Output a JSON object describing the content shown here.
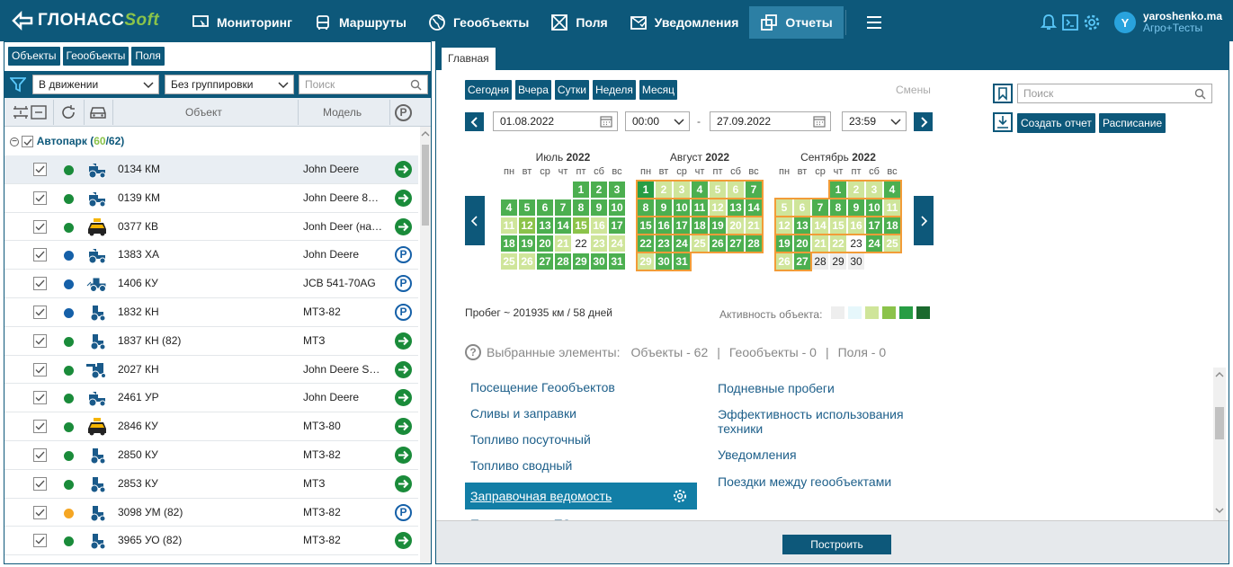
{
  "app": {
    "logo_main": "ГЛОНАСС",
    "logo_soft": "Soft"
  },
  "nav": [
    {
      "label": "Мониторинг",
      "icon": "monitor-icon"
    },
    {
      "label": "Маршруты",
      "icon": "bus-icon"
    },
    {
      "label": "Геообъекты",
      "icon": "globe-icon"
    },
    {
      "label": "Поля",
      "icon": "field-icon"
    },
    {
      "label": "Уведомления",
      "icon": "mail-check-icon"
    },
    {
      "label": "Отчеты",
      "icon": "reports-icon",
      "active": true
    }
  ],
  "user": {
    "initial": "Y",
    "name": "yaroshenko.ma",
    "org": "Агро+Тесты"
  },
  "left_tabs": [
    "Объекты",
    "Геообъекты",
    "Поля"
  ],
  "filters": {
    "movement": "В движении",
    "grouping": "Без группировки",
    "search_placeholder": "Поиск"
  },
  "table_headers": {
    "object": "Объект",
    "model": "Модель"
  },
  "group": {
    "name": "Автопарк (",
    "active": "60",
    "sep": "/",
    "total": "62",
    "close": ")"
  },
  "objects": [
    {
      "name": "0134 КМ",
      "model": "John Deere",
      "dot": "#1a8b3a",
      "vehicle": "tractor",
      "status": "go",
      "selected": true
    },
    {
      "name": "0139 КМ",
      "model": "John Deere 8…",
      "dot": "#1a8b3a",
      "vehicle": "tractor",
      "status": "go"
    },
    {
      "name": "0377 КВ",
      "model": "Jonh Deer (на…",
      "dot": "#1a8b3a",
      "vehicle": "taxi",
      "status": "go"
    },
    {
      "name": "1383 ХА",
      "model": "John Deere",
      "dot": "#1560a8",
      "vehicle": "tractor",
      "status": "park"
    },
    {
      "name": "1406 КУ",
      "model": "JCB 541-70AG",
      "dot": "#1560a8",
      "vehicle": "loader",
      "status": "park"
    },
    {
      "name": "1832 КН",
      "model": "МТЗ-82",
      "dot": "#1560a8",
      "vehicle": "small-tractor",
      "status": "park"
    },
    {
      "name": "1837 КН (82)",
      "model": "МТЗ",
      "dot": "#1a8b3a",
      "vehicle": "small-tractor",
      "status": "go"
    },
    {
      "name": "2027 КН",
      "model": "John Deere S…",
      "dot": "#1a8b3a",
      "vehicle": "combine",
      "status": "go"
    },
    {
      "name": "2461 УР",
      "model": "John Deere",
      "dot": "#1a8b3a",
      "vehicle": "tractor",
      "status": "go"
    },
    {
      "name": "2846 КУ",
      "model": "МТЗ-80",
      "dot": "#1a8b3a",
      "vehicle": "taxi",
      "status": "go"
    },
    {
      "name": "2850 КУ",
      "model": "МТЗ-82",
      "dot": "#1a8b3a",
      "vehicle": "small-tractor",
      "status": "go"
    },
    {
      "name": "2853 КУ",
      "model": "МТЗ",
      "dot": "#1a8b3a",
      "vehicle": "small-tractor",
      "status": "go"
    },
    {
      "name": "3098 УМ (82)",
      "model": "МТЗ-82",
      "dot": "#f5a623",
      "vehicle": "small-tractor",
      "status": "park"
    },
    {
      "name": "3965 УО (82)",
      "model": "МТЗ-82",
      "dot": "#1a8b3a",
      "vehicle": "small-tractor",
      "status": "go"
    }
  ],
  "right_tab": "Главная",
  "periods": [
    "Сегодня",
    "Вчера",
    "Сутки",
    "Неделя",
    "Месяц"
  ],
  "shifts_label": "Смены",
  "date_from": "01.08.2022",
  "time_from": "00:00",
  "date_sep": "-",
  "date_to": "27.09.2022",
  "time_to": "23:59",
  "weekdays": [
    "пн",
    "вт",
    "ср",
    "чт",
    "пт",
    "сб",
    "вс"
  ],
  "calendars": [
    {
      "month": "Июль",
      "year": "2022",
      "start_col": 4,
      "days": 31,
      "levels": [
        3,
        3,
        3,
        3,
        3,
        3,
        3,
        3,
        3,
        3,
        1,
        2,
        3,
        3,
        2,
        1,
        3,
        3,
        3,
        3,
        1,
        0,
        1,
        1,
        1,
        1,
        3,
        3,
        3,
        3,
        3
      ]
    },
    {
      "month": "Август",
      "year": "2022",
      "start_col": 0,
      "days": 31,
      "selected_from": 1,
      "levels": [
        4,
        1,
        1,
        3,
        1,
        1,
        3,
        3,
        3,
        3,
        3,
        1,
        3,
        3,
        3,
        3,
        3,
        3,
        3,
        1,
        1,
        3,
        3,
        3,
        1,
        3,
        3,
        3,
        1,
        3,
        3
      ]
    },
    {
      "month": "Сентябрь",
      "year": "2022",
      "start_col": 3,
      "days": 30,
      "selected_to": 27,
      "levels": [
        3,
        1,
        1,
        3,
        1,
        1,
        3,
        3,
        3,
        3,
        1,
        1,
        3,
        1,
        1,
        1,
        3,
        3,
        3,
        3,
        1,
        1,
        0,
        3,
        1,
        1,
        3,
        -1,
        -1,
        -1
      ]
    }
  ],
  "mileage": "Пробег ~ 201935 км / 58 дней",
  "activity_label": "Активность объекта:",
  "activity_colors": [
    "#eeeeee",
    "#e6f7fb",
    "#cfe59a",
    "#8bc34a",
    "#279d44",
    "#1b6a2e"
  ],
  "selected_elements": {
    "label": "Выбранные элементы:",
    "objects": "Объекты - 62",
    "geo": "Геообъекты - 0",
    "fields": "Поля - 0",
    "sep": "|"
  },
  "reports_left": [
    "Посещение Геообъектов",
    "Сливы и заправки",
    "Топливо посуточный",
    "Топливо сводный",
    "Заправочная ведомость",
    "Проведенные ТО"
  ],
  "reports_right": [
    "Подневные пробеги",
    "Эффективность использования техники",
    "Уведомления",
    "Поездки между геообъектами"
  ],
  "search_placeholder_right": "Поиск",
  "create_report": "Создать отчет",
  "schedule": "Расписание",
  "build_button": "Построить"
}
